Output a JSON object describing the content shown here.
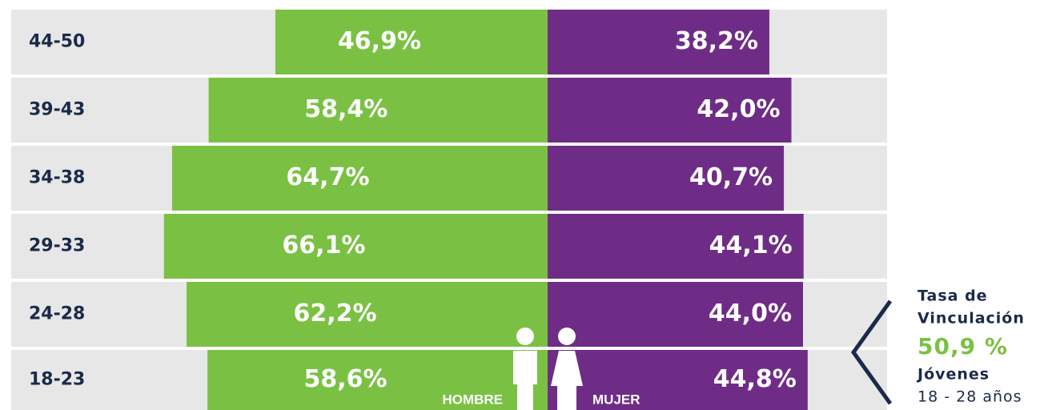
{
  "chart_data": {
    "type": "pyramid",
    "categories": [
      "44-50",
      "39-43",
      "34-38",
      "29-33",
      "24-28",
      "18-23"
    ],
    "series": [
      {
        "name": "HOMBRE",
        "color": "#7ac143",
        "values": [
          46.9,
          58.4,
          64.7,
          66.1,
          62.2,
          58.6
        ],
        "value_labels": [
          "46,9%",
          "58,4%",
          "64,7%",
          "66,1%",
          "62,2%",
          "58,6%"
        ]
      },
      {
        "name": "MUJER",
        "color": "#6f2c86",
        "values": [
          38.2,
          42.0,
          40.7,
          44.1,
          44.0,
          44.8
        ],
        "value_labels": [
          "38,2%",
          "42,0%",
          "40,7%",
          "44,1%",
          "44,0%",
          "44,8%"
        ]
      }
    ],
    "annotation": {
      "line1": "Tasa de",
      "line2": "Vinculación",
      "value": "50,9 %",
      "group": "Jóvenes",
      "range": "18 - 28 años"
    }
  }
}
